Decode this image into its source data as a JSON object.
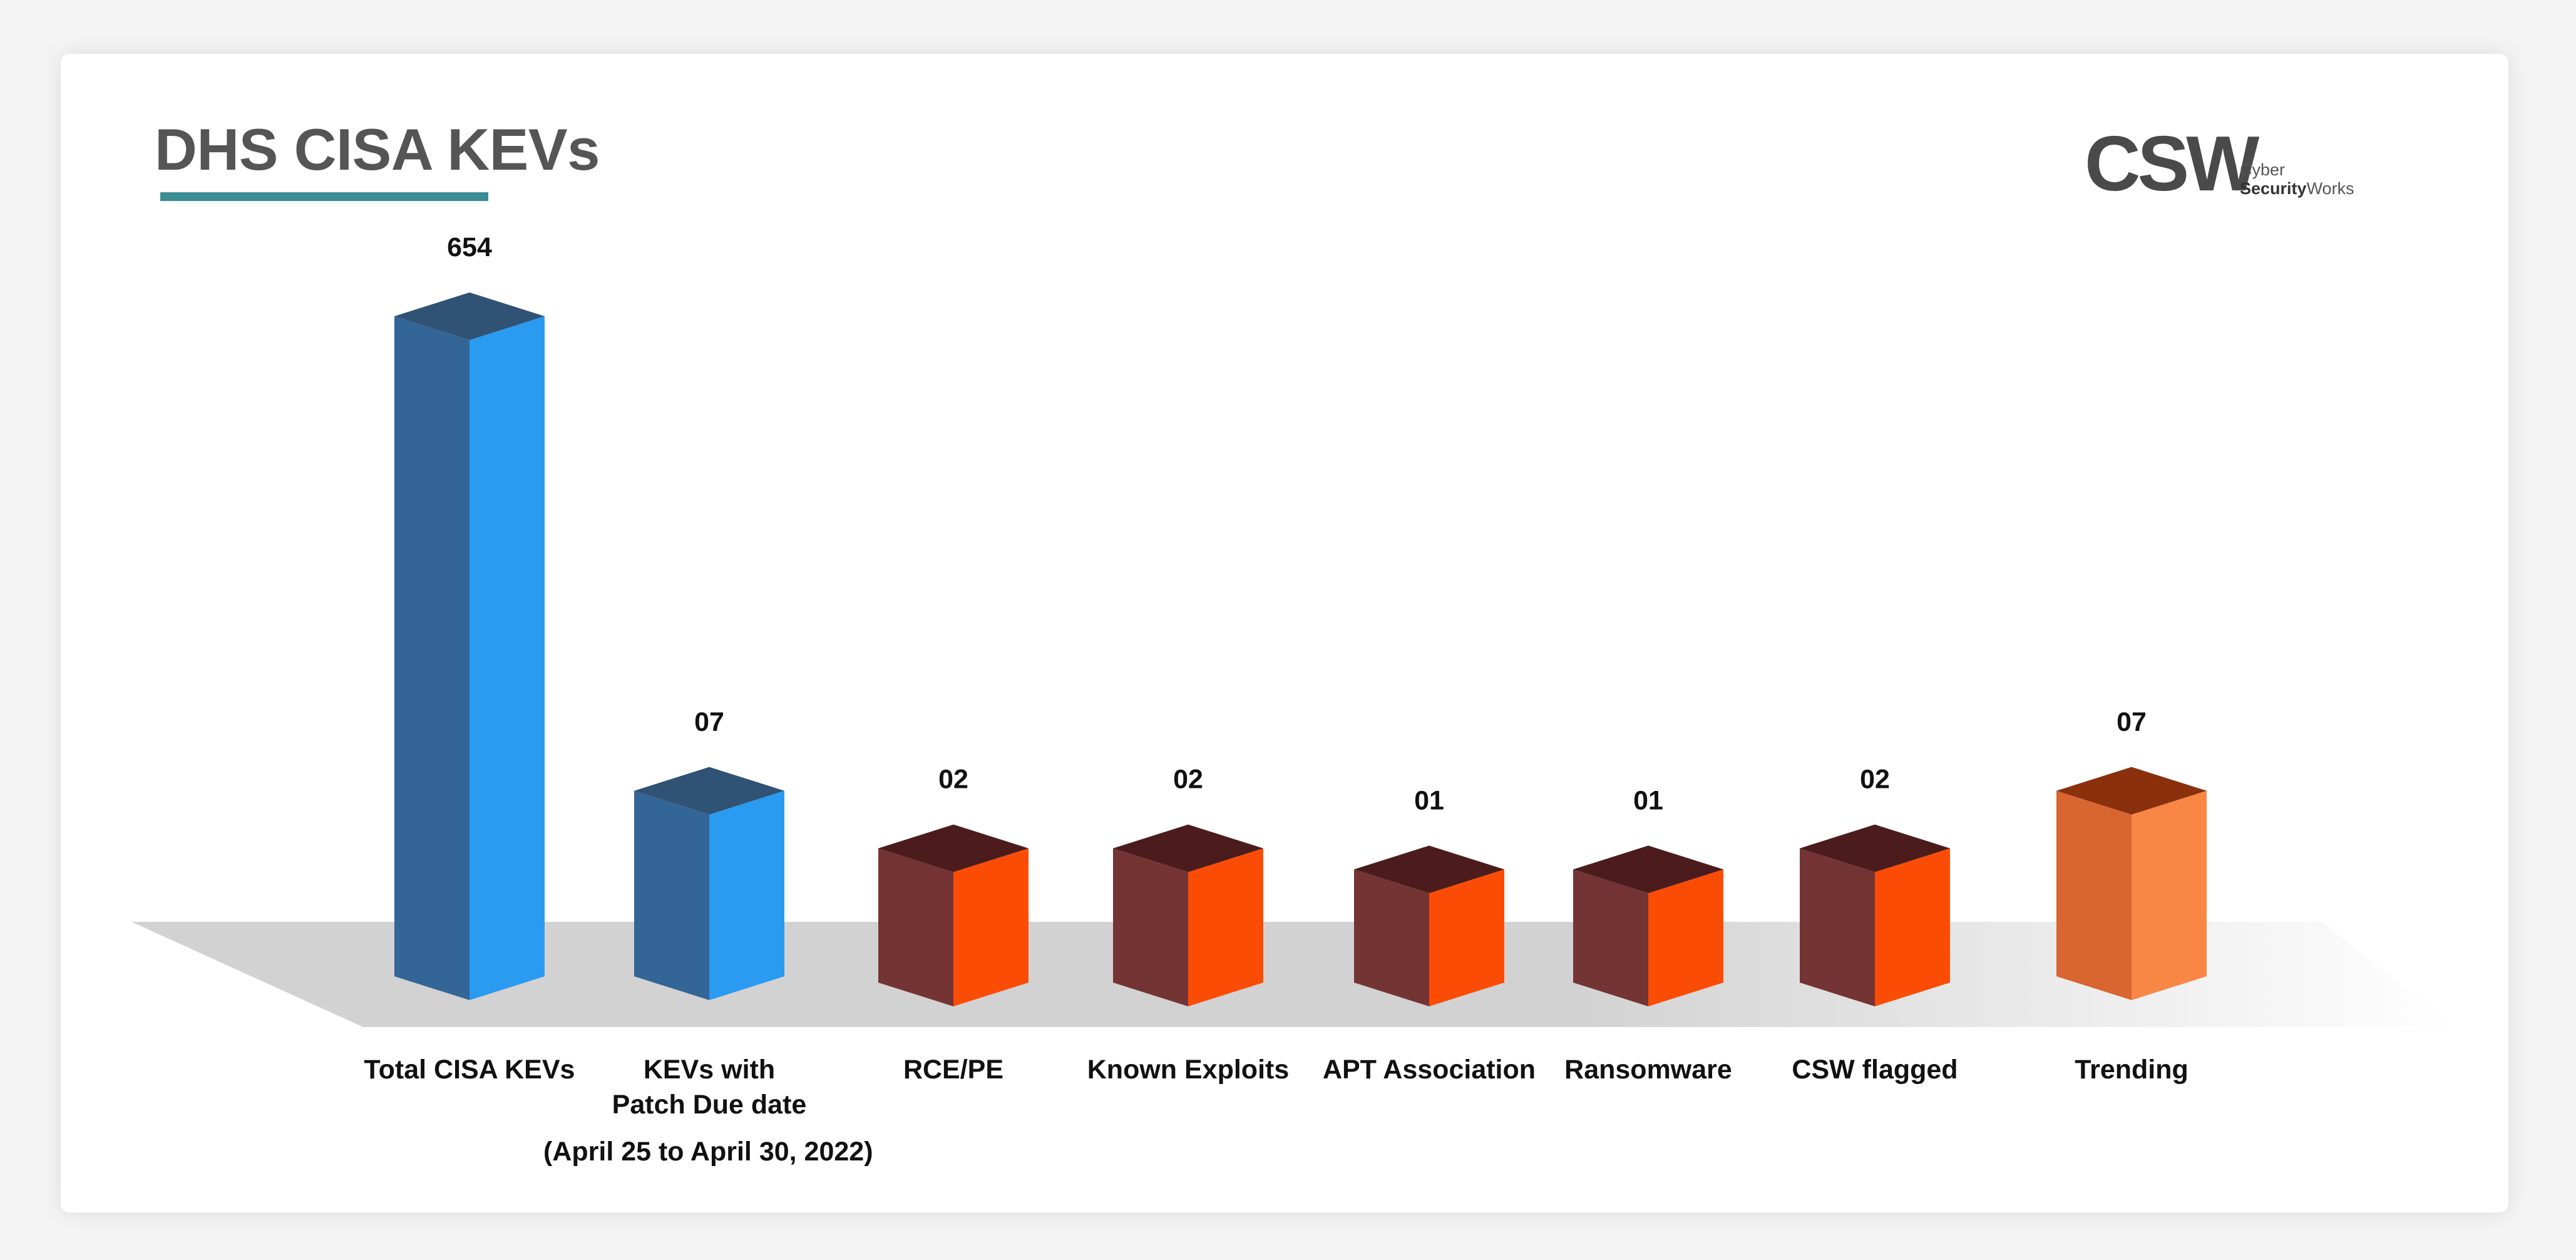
{
  "title": "DHS CISA KEVs",
  "logo": {
    "mark": "CSW",
    "line1": "Cyber",
    "line2_bold": "Security",
    "line2_rest": "Works"
  },
  "footnote": "(April 25 to April 30, 2022)",
  "chart_data": {
    "type": "bar",
    "title": "DHS CISA KEVs",
    "xlabel": "",
    "ylabel": "",
    "grid": false,
    "legend": "none",
    "categories": [
      [
        "Total CISA KEVs"
      ],
      [
        "KEVs with",
        "Patch Due date"
      ],
      [
        "RCE/PE"
      ],
      [
        "Known Exploits"
      ],
      [
        "APT Association"
      ],
      [
        "Ransomware"
      ],
      [
        "CSW flagged"
      ],
      [
        "Trending"
      ]
    ],
    "values": [
      654,
      7,
      2,
      2,
      1,
      1,
      2,
      7
    ],
    "value_labels": [
      "654",
      "07",
      "02",
      "02",
      "01",
      "01",
      "02",
      "07"
    ],
    "colors": {
      "blue": {
        "front": "#2a9bf0",
        "side": "#346597",
        "top": "#2f5275"
      },
      "maroon": {
        "front": "#fb4c05",
        "side": "#743434",
        "top": "#4c1c1c"
      },
      "orange": {
        "front": "#f88746",
        "side": "#d96530",
        "top": "#8a300c"
      }
    },
    "bar_colors": [
      "blue",
      "blue",
      "maroon",
      "maroon",
      "maroon",
      "maroon",
      "maroon",
      "orange"
    ]
  }
}
